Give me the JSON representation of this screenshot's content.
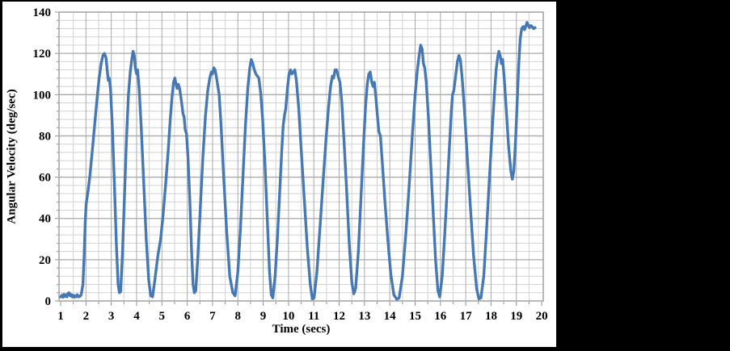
{
  "chart_data": {
    "type": "line",
    "title": "",
    "xlabel": "Time (secs)",
    "ylabel": "Angular Velocity (deg/sec)",
    "xlim": [
      1,
      20
    ],
    "ylim": [
      0,
      140
    ],
    "x_major_step": 1,
    "x_minor_step": 0.5,
    "y_major_step": 20,
    "y_minor_step": 4,
    "grid": "major+minor",
    "legend_position": "none",
    "x_tick_labels": [
      "1",
      "2",
      "3",
      "4",
      "5",
      "6",
      "7",
      "8",
      "9",
      "10",
      "11",
      "12",
      "13",
      "14",
      "15",
      "16",
      "17",
      "18",
      "19",
      "20"
    ],
    "y_tick_labels": [
      "0",
      "20",
      "40",
      "60",
      "80",
      "100",
      "120",
      "140"
    ],
    "series": [
      {
        "name": "angular velocity",
        "color": "#4678B4",
        "points": [
          [
            1.0,
            2.0
          ],
          [
            1.05,
            2.8
          ],
          [
            1.09,
            1.8
          ],
          [
            1.13,
            3.2
          ],
          [
            1.17,
            2.2
          ],
          [
            1.21,
            3.0
          ],
          [
            1.25,
            2.0
          ],
          [
            1.29,
            3.6
          ],
          [
            1.33,
            4.0
          ],
          [
            1.37,
            2.6
          ],
          [
            1.41,
            3.2
          ],
          [
            1.45,
            2.0
          ],
          [
            1.49,
            2.8
          ],
          [
            1.53,
            1.8
          ],
          [
            1.57,
            2.6
          ],
          [
            1.61,
            2.0
          ],
          [
            1.66,
            3.0
          ],
          [
            1.71,
            2.0
          ],
          [
            1.76,
            2.2
          ],
          [
            1.81,
            3.0
          ],
          [
            1.88,
            8
          ],
          [
            1.93,
            22
          ],
          [
            1.97,
            38
          ],
          [
            2.01,
            47
          ],
          [
            2.08,
            53
          ],
          [
            2.16,
            61
          ],
          [
            2.25,
            73
          ],
          [
            2.34,
            85
          ],
          [
            2.43,
            97
          ],
          [
            2.52,
            108
          ],
          [
            2.6,
            115
          ],
          [
            2.67,
            119
          ],
          [
            2.73,
            120
          ],
          [
            2.79,
            118
          ],
          [
            2.84,
            112
          ],
          [
            2.88,
            107
          ],
          [
            2.92,
            108
          ],
          [
            2.97,
            103
          ],
          [
            3.04,
            85
          ],
          [
            3.12,
            58
          ],
          [
            3.2,
            28
          ],
          [
            3.27,
            8
          ],
          [
            3.32,
            4
          ],
          [
            3.37,
            4.5
          ],
          [
            3.44,
            22
          ],
          [
            3.52,
            50
          ],
          [
            3.6,
            78
          ],
          [
            3.68,
            100
          ],
          [
            3.75,
            111
          ],
          [
            3.81,
            117
          ],
          [
            3.86,
            121
          ],
          [
            3.91,
            119
          ],
          [
            3.95,
            113
          ],
          [
            4.0,
            110
          ],
          [
            4.04,
            112
          ],
          [
            4.1,
            103
          ],
          [
            4.18,
            85
          ],
          [
            4.28,
            58
          ],
          [
            4.38,
            30
          ],
          [
            4.48,
            10
          ],
          [
            4.56,
            2.5
          ],
          [
            4.63,
            2
          ],
          [
            4.72,
            10
          ],
          [
            4.84,
            22
          ],
          [
            4.95,
            30
          ],
          [
            5.05,
            42
          ],
          [
            5.15,
            57
          ],
          [
            5.25,
            73
          ],
          [
            5.33,
            88
          ],
          [
            5.4,
            99
          ],
          [
            5.46,
            106
          ],
          [
            5.51,
            108
          ],
          [
            5.56,
            105
          ],
          [
            5.6,
            103
          ],
          [
            5.65,
            105
          ],
          [
            5.7,
            103
          ],
          [
            5.77,
            97
          ],
          [
            5.83,
            91
          ],
          [
            5.88,
            89
          ],
          [
            5.92,
            83
          ],
          [
            5.97,
            81
          ],
          [
            6.03,
            70
          ],
          [
            6.1,
            50
          ],
          [
            6.17,
            25
          ],
          [
            6.23,
            8
          ],
          [
            6.28,
            4
          ],
          [
            6.34,
            5
          ],
          [
            6.42,
            22
          ],
          [
            6.52,
            46
          ],
          [
            6.62,
            70
          ],
          [
            6.72,
            90
          ],
          [
            6.81,
            102
          ],
          [
            6.89,
            108
          ],
          [
            6.95,
            111
          ],
          [
            7.0,
            110
          ],
          [
            7.05,
            113
          ],
          [
            7.1,
            112
          ],
          [
            7.16,
            108
          ],
          [
            7.21,
            104
          ],
          [
            7.26,
            100
          ],
          [
            7.34,
            84
          ],
          [
            7.44,
            60
          ],
          [
            7.56,
            33
          ],
          [
            7.68,
            12
          ],
          [
            7.8,
            4
          ],
          [
            7.89,
            2.5
          ],
          [
            8.0,
            14
          ],
          [
            8.1,
            35
          ],
          [
            8.2,
            60
          ],
          [
            8.3,
            85
          ],
          [
            8.39,
            103
          ],
          [
            8.47,
            113
          ],
          [
            8.53,
            117
          ],
          [
            8.59,
            115
          ],
          [
            8.65,
            112
          ],
          [
            8.71,
            110
          ],
          [
            8.77,
            109
          ],
          [
            8.83,
            108
          ],
          [
            8.9,
            101
          ],
          [
            8.98,
            88
          ],
          [
            9.07,
            66
          ],
          [
            9.16,
            40
          ],
          [
            9.25,
            14
          ],
          [
            9.32,
            3
          ],
          [
            9.38,
            1.5
          ],
          [
            9.47,
            12
          ],
          [
            9.56,
            30
          ],
          [
            9.65,
            52
          ],
          [
            9.73,
            72
          ],
          [
            9.79,
            85
          ],
          [
            9.84,
            90
          ],
          [
            9.89,
            93
          ],
          [
            9.96,
            103
          ],
          [
            10.02,
            110
          ],
          [
            10.08,
            112
          ],
          [
            10.13,
            110
          ],
          [
            10.19,
            111
          ],
          [
            10.25,
            112
          ],
          [
            10.31,
            107
          ],
          [
            10.4,
            94
          ],
          [
            10.5,
            74
          ],
          [
            10.62,
            50
          ],
          [
            10.74,
            26
          ],
          [
            10.86,
            8
          ],
          [
            10.94,
            1
          ],
          [
            11.01,
            1.5
          ],
          [
            11.12,
            14
          ],
          [
            11.24,
            35
          ],
          [
            11.36,
            57
          ],
          [
            11.48,
            78
          ],
          [
            11.58,
            94
          ],
          [
            11.66,
            104
          ],
          [
            11.73,
            109
          ],
          [
            11.78,
            108
          ],
          [
            11.84,
            112
          ],
          [
            11.9,
            112
          ],
          [
            11.96,
            109
          ],
          [
            12.03,
            106
          ],
          [
            12.1,
            97
          ],
          [
            12.19,
            78
          ],
          [
            12.29,
            55
          ],
          [
            12.4,
            28
          ],
          [
            12.5,
            9
          ],
          [
            12.58,
            3.5
          ],
          [
            12.65,
            6
          ],
          [
            12.76,
            24
          ],
          [
            12.86,
            50
          ],
          [
            12.96,
            75
          ],
          [
            13.04,
            94
          ],
          [
            13.11,
            105
          ],
          [
            13.17,
            110
          ],
          [
            13.23,
            111
          ],
          [
            13.29,
            106
          ],
          [
            13.34,
            104
          ],
          [
            13.39,
            106
          ],
          [
            13.45,
            99
          ],
          [
            13.51,
            90
          ],
          [
            13.57,
            82
          ],
          [
            13.63,
            80
          ],
          [
            13.71,
            66
          ],
          [
            13.81,
            48
          ],
          [
            13.92,
            30
          ],
          [
            14.04,
            13
          ],
          [
            14.16,
            3
          ],
          [
            14.28,
            0.8
          ],
          [
            14.37,
            1.5
          ],
          [
            14.5,
            12
          ],
          [
            14.63,
            32
          ],
          [
            14.76,
            55
          ],
          [
            14.89,
            80
          ],
          [
            15.0,
            100
          ],
          [
            15.09,
            112
          ],
          [
            15.16,
            119
          ],
          [
            15.22,
            124
          ],
          [
            15.28,
            122
          ],
          [
            15.33,
            115
          ],
          [
            15.38,
            113
          ],
          [
            15.44,
            106
          ],
          [
            15.52,
            90
          ],
          [
            15.61,
            68
          ],
          [
            15.71,
            44
          ],
          [
            15.81,
            20
          ],
          [
            15.9,
            5
          ],
          [
            15.97,
            2
          ],
          [
            16.07,
            12
          ],
          [
            16.17,
            32
          ],
          [
            16.27,
            55
          ],
          [
            16.36,
            76
          ],
          [
            16.43,
            92
          ],
          [
            16.48,
            100
          ],
          [
            16.53,
            102
          ],
          [
            16.6,
            109
          ],
          [
            16.67,
            116
          ],
          [
            16.73,
            119
          ],
          [
            16.79,
            117
          ],
          [
            16.86,
            108
          ],
          [
            16.95,
            92
          ],
          [
            17.06,
            70
          ],
          [
            17.18,
            46
          ],
          [
            17.31,
            22
          ],
          [
            17.43,
            6
          ],
          [
            17.52,
            1
          ],
          [
            17.6,
            1.5
          ],
          [
            17.71,
            12
          ],
          [
            17.82,
            34
          ],
          [
            17.93,
            58
          ],
          [
            18.04,
            82
          ],
          [
            18.13,
            100
          ],
          [
            18.2,
            112
          ],
          [
            18.26,
            118
          ],
          [
            18.31,
            121
          ],
          [
            18.36,
            119
          ],
          [
            18.41,
            115
          ],
          [
            18.46,
            117
          ],
          [
            18.52,
            108
          ],
          [
            18.6,
            93
          ],
          [
            18.69,
            75
          ],
          [
            18.78,
            63
          ],
          [
            18.84,
            59
          ],
          [
            18.9,
            63
          ],
          [
            18.97,
            78
          ],
          [
            19.03,
            96
          ],
          [
            19.09,
            114
          ],
          [
            19.15,
            127
          ],
          [
            19.21,
            132
          ],
          [
            19.27,
            133
          ],
          [
            19.32,
            131.5
          ],
          [
            19.37,
            133
          ],
          [
            19.42,
            135
          ],
          [
            19.47,
            133.5
          ],
          [
            19.52,
            132.5
          ],
          [
            19.57,
            133.5
          ],
          [
            19.62,
            133
          ],
          [
            19.68,
            132
          ],
          [
            19.74,
            132.5
          ]
        ]
      }
    ]
  }
}
